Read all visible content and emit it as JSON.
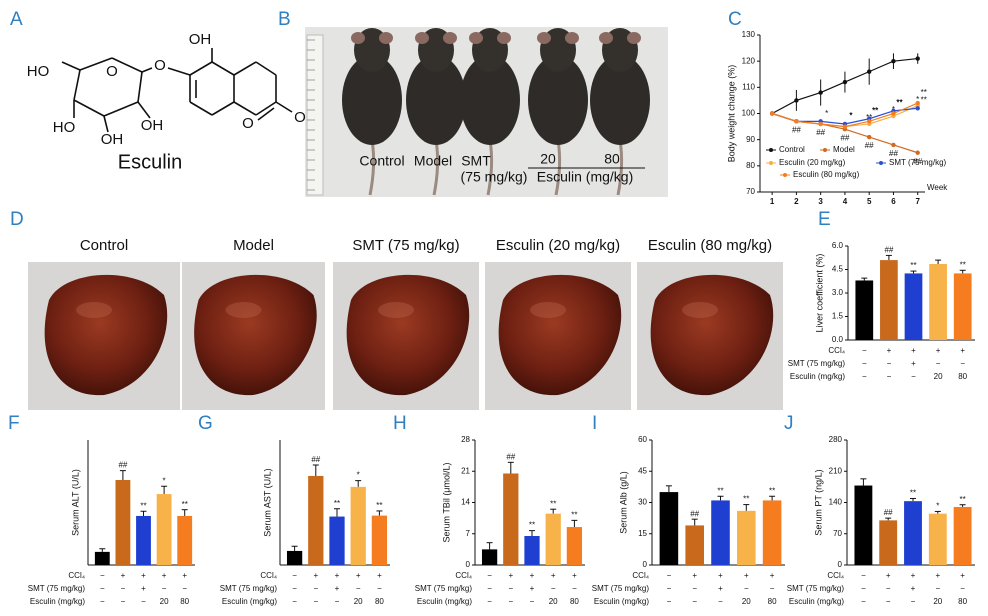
{
  "panel_labels": [
    "A",
    "B",
    "C",
    "D",
    "E",
    "F",
    "G",
    "H",
    "I",
    "J"
  ],
  "structure": {
    "name": "Esculin",
    "atoms": [
      "OH",
      "HO",
      "O",
      "O",
      "HO",
      "OH",
      "OH",
      "O",
      "O"
    ]
  },
  "mouse_photo": {
    "groups": [
      "Control",
      "Model",
      "SMT",
      "(75 mg/kg)",
      "20",
      "80",
      "Esculin (mg/kg)"
    ]
  },
  "liver_photos": [
    "Control",
    "Model",
    "SMT (75 mg/kg)",
    "Esculin (20 mg/kg)",
    "Esculin (80 mg/kg)"
  ],
  "treatment_table": {
    "rows": [
      {
        "label": "CCl₄",
        "cells": [
          "−",
          "+",
          "+",
          "+",
          "+"
        ]
      },
      {
        "label": "SMT (75 mg/kg)",
        "cells": [
          "−",
          "−",
          "+",
          "−",
          "−"
        ]
      },
      {
        "label": "Esculin (mg/kg)",
        "cells": [
          "−",
          "−",
          "−",
          "20",
          "80"
        ]
      }
    ]
  },
  "chart_data": [
    {
      "type": "line",
      "y_label": "Body weight change (%)",
      "x_label": "Week",
      "x": [
        1,
        2,
        3,
        4,
        5,
        6,
        7
      ],
      "xlim": [
        0.5,
        7.3
      ],
      "xticks": [
        1,
        2,
        3,
        4,
        5,
        6,
        7
      ],
      "ylim": [
        70,
        130
      ],
      "yticks": [
        70,
        80,
        90,
        100,
        110,
        120,
        130
      ],
      "series": [
        {
          "name": "Control",
          "color": "#111111",
          "values": [
            100,
            105,
            108,
            112,
            116,
            120,
            121
          ],
          "errors": [
            0,
            4,
            5,
            4,
            5,
            3,
            2
          ],
          "significance": [
            null,
            null,
            null,
            null,
            null,
            null,
            null
          ]
        },
        {
          "name": "Model",
          "color": "#d2691e",
          "values": [
            100,
            97,
            96,
            94,
            91,
            88,
            85
          ],
          "significance": [
            null,
            "##",
            "##",
            "##",
            "##",
            "##",
            "##"
          ]
        },
        {
          "name": "Esculin (20 mg/kg)",
          "color": "#f5b041",
          "values": [
            100,
            97,
            96,
            95,
            96,
            99,
            103
          ],
          "significance": [
            null,
            null,
            null,
            null,
            "**",
            "*",
            "*"
          ]
        },
        {
          "name": "SMT (75 mg/kg)",
          "color": "#2a4fd6",
          "values": [
            100,
            97,
            97,
            96,
            98,
            101,
            102
          ],
          "significance": [
            null,
            null,
            null,
            "*",
            "**",
            "**",
            "**"
          ]
        },
        {
          "name": "Esculin (80 mg/kg)",
          "color": "#f57c1f",
          "values": [
            100,
            97,
            96,
            95,
            97,
            100,
            104
          ],
          "significance": [
            null,
            null,
            "*",
            "*",
            "**",
            "**",
            "**"
          ]
        }
      ]
    },
    {
      "type": "bar",
      "y_label": "Liver coefficient (%)",
      "ylim": [
        0,
        6
      ],
      "yticks": [
        {
          "value": 0,
          "label": "0.0"
        },
        1.5,
        {
          "value": 3,
          "label": "3.0"
        },
        4.5,
        {
          "value": 6,
          "label": "6.0"
        }
      ],
      "values": [
        3.8,
        5.1,
        4.25,
        4.85,
        4.25
      ],
      "errors": [
        0.15,
        0.3,
        0.15,
        0.25,
        0.2
      ],
      "colors": [
        "#000000",
        "#c8691c",
        "#1f3fd1",
        "#f7b24a",
        "#f57c1f"
      ],
      "significance": [
        null,
        "##",
        "**",
        null,
        "**"
      ]
    },
    {
      "type": "bar",
      "y_label": "Serum ALT (U/L)",
      "ylim": [
        0,
        400
      ],
      "values": [
        42,
        272,
        157,
        227,
        157
      ],
      "errors": [
        10,
        30,
        15,
        25,
        20
      ],
      "colors": [
        "#000000",
        "#c8691c",
        "#1f3fd1",
        "#f7b24a",
        "#f57c1f"
      ],
      "significance": [
        null,
        "##",
        "**",
        "*",
        "**"
      ]
    },
    {
      "type": "bar",
      "y_label": "Serum AST (U/L)",
      "ylim": [
        0,
        400
      ],
      "values": [
        45,
        285,
        155,
        250,
        158
      ],
      "errors": [
        15,
        35,
        25,
        20,
        15
      ],
      "colors": [
        "#000000",
        "#c8691c",
        "#1f3fd1",
        "#f7b24a",
        "#f57c1f"
      ],
      "significance": [
        null,
        "##",
        "**",
        "*",
        "**"
      ]
    },
    {
      "type": "bar",
      "y_label": "Serum TBil (μmol/L)",
      "ylim": [
        0,
        28
      ],
      "yticks": [
        0,
        7,
        14,
        21,
        28
      ],
      "values": [
        3.5,
        20.5,
        6.5,
        11.5,
        8.5
      ],
      "errors": [
        1.5,
        2.5,
        1.2,
        1.0,
        1.5
      ],
      "colors": [
        "#000000",
        "#c8691c",
        "#1f3fd1",
        "#f7b24a",
        "#f57c1f"
      ],
      "significance": [
        null,
        "##",
        "**",
        "**",
        "**"
      ]
    },
    {
      "type": "bar",
      "y_label": "Serum Alb (g/L)",
      "ylim": [
        0,
        60
      ],
      "yticks": [
        0,
        15,
        30,
        45,
        60
      ],
      "values": [
        35,
        19,
        31,
        26,
        31
      ],
      "errors": [
        3,
        3,
        2,
        3,
        2
      ],
      "colors": [
        "#000000",
        "#c8691c",
        "#1f3fd1",
        "#f7b24a",
        "#f57c1f"
      ],
      "significance": [
        null,
        "##",
        "**",
        "**",
        "**"
      ]
    },
    {
      "type": "bar",
      "y_label": "Serum PT (ng/L)",
      "ylim": [
        0,
        280
      ],
      "yticks": [
        0,
        70,
        140,
        210,
        280
      ],
      "values": [
        178,
        100,
        143,
        115,
        130
      ],
      "errors": [
        15,
        5,
        6,
        5,
        5
      ],
      "colors": [
        "#000000",
        "#c8691c",
        "#1f3fd1",
        "#f7b24a",
        "#f57c1f"
      ],
      "significance": [
        null,
        "##",
        "**",
        "*",
        "**"
      ]
    }
  ]
}
